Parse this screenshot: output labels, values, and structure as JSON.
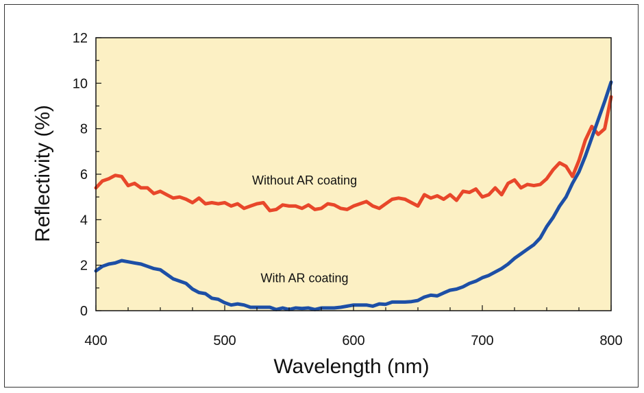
{
  "chart_data": {
    "type": "line",
    "xlabel": "Wavelength (nm)",
    "ylabel": "Reflectivity (%)",
    "xlim": [
      400,
      800
    ],
    "ylim": [
      0,
      12
    ],
    "xticks": [
      400,
      500,
      600,
      700,
      800
    ],
    "yticks": [
      0,
      2,
      4,
      6,
      8,
      10,
      12
    ],
    "background": "#fcf0c4",
    "grid": false,
    "series": [
      {
        "name": "Without AR coating",
        "color": "#e8472a",
        "x": [
          400,
          405,
          410,
          415,
          420,
          425,
          430,
          435,
          440,
          445,
          450,
          455,
          460,
          465,
          470,
          475,
          480,
          485,
          490,
          495,
          500,
          505,
          510,
          515,
          520,
          525,
          530,
          535,
          540,
          545,
          550,
          555,
          560,
          565,
          570,
          575,
          580,
          585,
          590,
          595,
          600,
          605,
          610,
          615,
          620,
          625,
          630,
          635,
          640,
          645,
          650,
          655,
          660,
          665,
          670,
          675,
          680,
          685,
          690,
          695,
          700,
          705,
          710,
          715,
          720,
          725,
          730,
          735,
          740,
          745,
          750,
          755,
          760,
          765,
          770,
          775,
          780,
          785,
          790,
          795,
          800
        ],
        "y": [
          5.4,
          5.7,
          5.8,
          5.95,
          5.9,
          5.5,
          5.6,
          5.4,
          5.4,
          5.15,
          5.25,
          5.1,
          4.95,
          5.0,
          4.9,
          4.75,
          4.95,
          4.7,
          4.75,
          4.7,
          4.75,
          4.6,
          4.7,
          4.5,
          4.6,
          4.7,
          4.75,
          4.4,
          4.45,
          4.65,
          4.6,
          4.6,
          4.5,
          4.65,
          4.45,
          4.5,
          4.7,
          4.65,
          4.5,
          4.45,
          4.6,
          4.7,
          4.8,
          4.6,
          4.5,
          4.7,
          4.9,
          4.95,
          4.9,
          4.75,
          4.6,
          5.1,
          4.95,
          5.05,
          4.9,
          5.1,
          4.85,
          5.25,
          5.2,
          5.35,
          5.0,
          5.1,
          5.4,
          5.1,
          5.6,
          5.75,
          5.4,
          5.55,
          5.5,
          5.55,
          5.8,
          6.2,
          6.5,
          6.35,
          5.9,
          6.6,
          7.5,
          8.1,
          7.75,
          8.0,
          9.4
        ]
      },
      {
        "name": "With AR coating",
        "color": "#1d4fa6",
        "x": [
          400,
          405,
          410,
          415,
          420,
          425,
          430,
          435,
          440,
          445,
          450,
          455,
          460,
          465,
          470,
          475,
          480,
          485,
          490,
          495,
          500,
          505,
          510,
          515,
          520,
          525,
          530,
          535,
          540,
          545,
          550,
          555,
          560,
          565,
          570,
          575,
          580,
          585,
          590,
          595,
          600,
          605,
          610,
          615,
          620,
          625,
          630,
          635,
          640,
          645,
          650,
          655,
          660,
          665,
          670,
          675,
          680,
          685,
          690,
          695,
          700,
          705,
          710,
          715,
          720,
          725,
          730,
          735,
          740,
          745,
          750,
          755,
          760,
          765,
          770,
          775,
          780,
          785,
          790,
          795,
          800
        ],
        "y": [
          1.75,
          1.95,
          2.05,
          2.1,
          2.2,
          2.15,
          2.1,
          2.05,
          1.95,
          1.85,
          1.8,
          1.6,
          1.4,
          1.3,
          1.2,
          0.95,
          0.8,
          0.75,
          0.55,
          0.5,
          0.35,
          0.25,
          0.3,
          0.25,
          0.15,
          0.15,
          0.15,
          0.15,
          0.05,
          0.12,
          0.05,
          0.12,
          0.1,
          0.12,
          0.05,
          0.12,
          0.12,
          0.12,
          0.15,
          0.2,
          0.25,
          0.25,
          0.25,
          0.2,
          0.3,
          0.28,
          0.38,
          0.38,
          0.38,
          0.4,
          0.45,
          0.6,
          0.68,
          0.65,
          0.78,
          0.9,
          0.95,
          1.05,
          1.2,
          1.3,
          1.45,
          1.55,
          1.7,
          1.85,
          2.05,
          2.3,
          2.5,
          2.7,
          2.9,
          3.2,
          3.7,
          4.1,
          4.6,
          5.0,
          5.6,
          6.1,
          6.8,
          7.6,
          8.4,
          9.2,
          10.05
        ]
      }
    ],
    "annotations": [
      {
        "text": "Without AR coating",
        "x": 562,
        "y": 5.55
      },
      {
        "text": "With AR coating",
        "x": 562,
        "y": 1.25
      }
    ]
  }
}
